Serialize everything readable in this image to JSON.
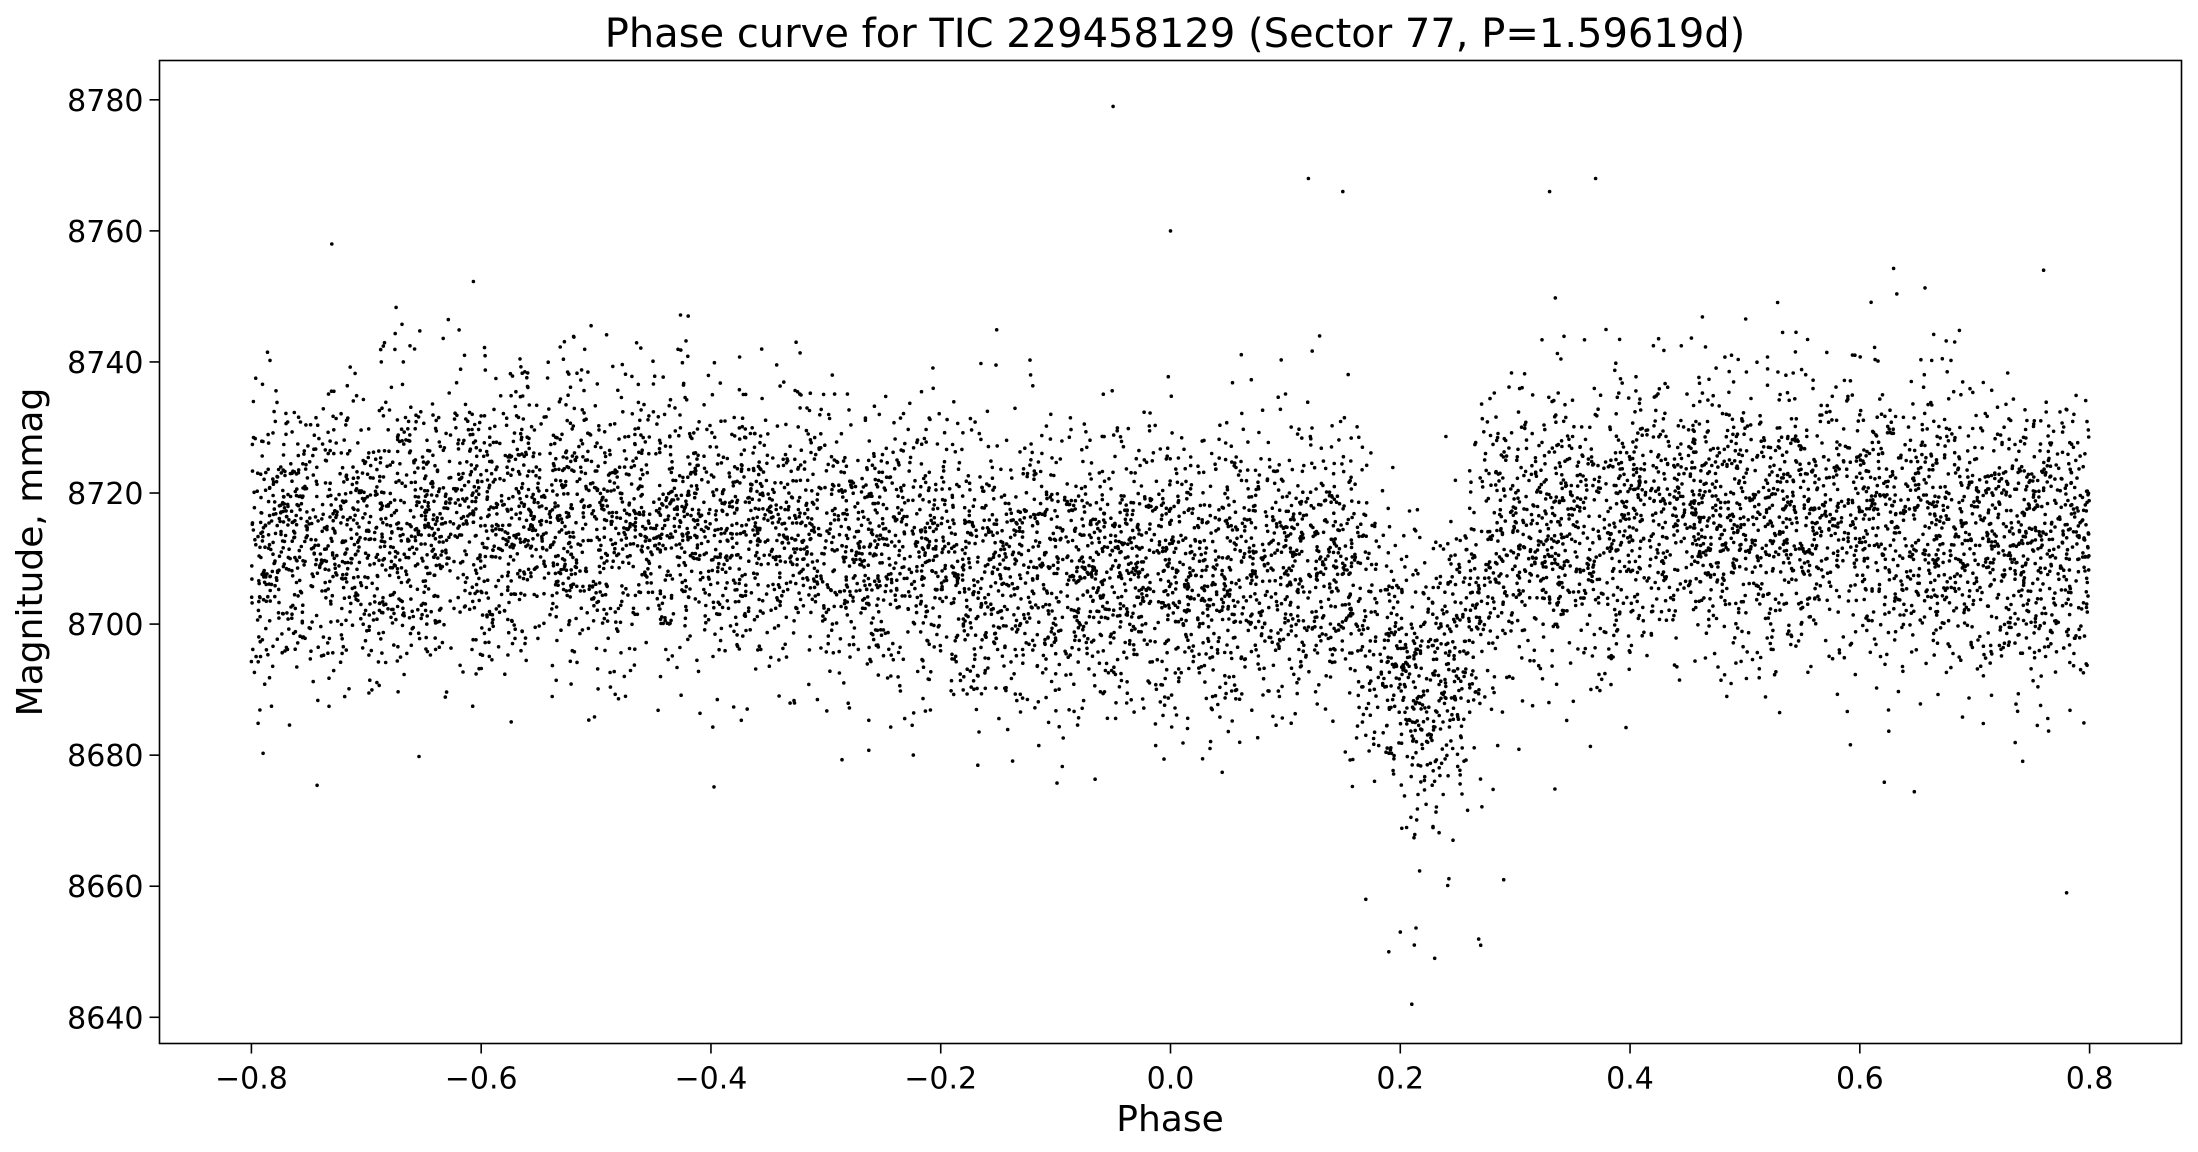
{
  "chart_data": {
    "type": "scatter",
    "title": "Phase curve for TIC 229458129 (Sector 77, P=1.59619d)",
    "xlabel": "Phase",
    "ylabel": "Magnitude, mmag",
    "xlim": [
      -0.88,
      0.88
    ],
    "ylim": [
      8636,
      8786
    ],
    "xticks": [
      -0.8,
      -0.6,
      -0.4,
      -0.2,
      0.0,
      0.2,
      0.4,
      0.6,
      0.8
    ],
    "xtick_labels": [
      "−0.8",
      "−0.6",
      "−0.4",
      "−0.2",
      "0.0",
      "0.2",
      "0.4",
      "0.6",
      "0.8"
    ],
    "yticks": [
      8640,
      8660,
      8680,
      8700,
      8720,
      8740,
      8760,
      8780
    ],
    "ytick_labels": [
      "8640",
      "8660",
      "8680",
      "8700",
      "8720",
      "8740",
      "8760",
      "8780"
    ],
    "grid": false,
    "legend": "none",
    "marker_color": "#000000",
    "series": [
      {
        "x_range": [
          -0.8,
          0.8
        ],
        "baseline": 8712,
        "scatter_sd": 11,
        "dip": {
          "center": 0.22,
          "depth": 22,
          "half_width": 0.07
        },
        "points": [
          [
            -0.05,
            8779
          ],
          [
            -0.73,
            8758
          ],
          [
            0.12,
            8768
          ],
          [
            0.37,
            8768
          ],
          [
            0.33,
            8766
          ],
          [
            0.15,
            8766
          ],
          [
            0.21,
            8642
          ],
          [
            0.23,
            8649
          ],
          [
            0.19,
            8650
          ],
          [
            0.27,
            8651
          ],
          [
            0.2,
            8653
          ],
          [
            0.78,
            8659
          ],
          [
            0.17,
            8658
          ],
          [
            0.29,
            8661
          ],
          [
            0.76,
            8754
          ],
          [
            0.0,
            8760
          ]
        ]
      }
    ]
  }
}
